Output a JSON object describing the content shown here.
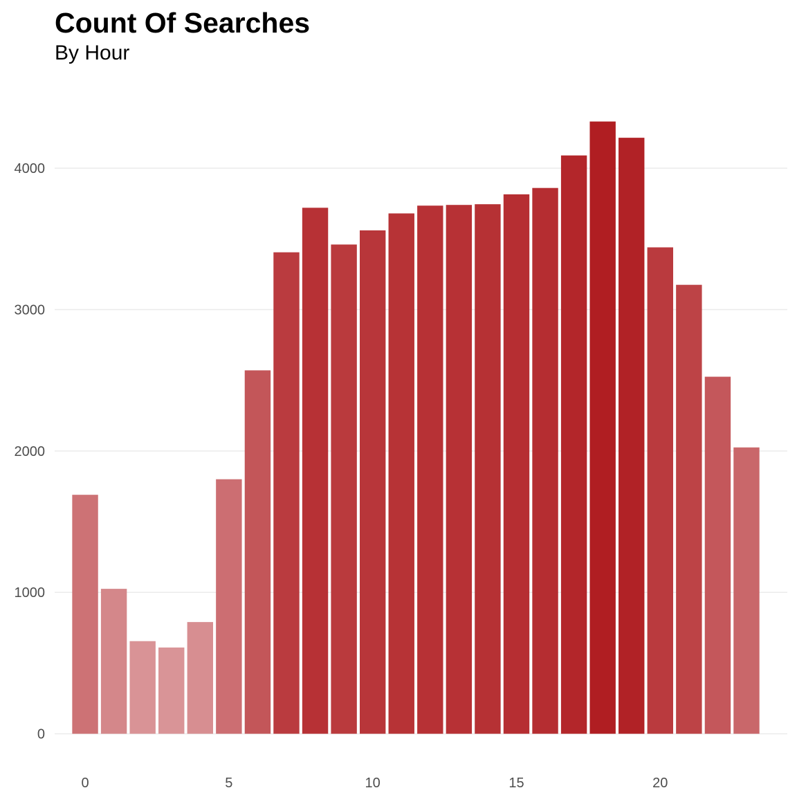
{
  "chart_data": {
    "type": "bar",
    "title": "Count Of Searches",
    "subtitle": "By Hour",
    "xlabel": "",
    "ylabel": "",
    "x": [
      0,
      1,
      2,
      3,
      4,
      5,
      6,
      7,
      8,
      9,
      10,
      11,
      12,
      13,
      14,
      15,
      16,
      17,
      18,
      19,
      20,
      21,
      22,
      23
    ],
    "values": [
      1690,
      1025,
      655,
      610,
      790,
      1800,
      2570,
      3405,
      3720,
      3460,
      3560,
      3680,
      3735,
      3740,
      3745,
      3815,
      3860,
      4090,
      4330,
      4215,
      3440,
      3175,
      2525,
      2025
    ],
    "xlim": [
      -1.06,
      24.42
    ],
    "ylim": [
      -95,
      4700
    ],
    "x_ticks": [
      0,
      5,
      10,
      15,
      20
    ],
    "x_tick_labels": [
      "0",
      "5",
      "10",
      "15",
      "20"
    ],
    "y_ticks": [
      0,
      1000,
      2000,
      3000,
      4000
    ],
    "y_tick_labels": [
      "0",
      "1000",
      "2000",
      "3000",
      "4000"
    ],
    "grid": true,
    "legend": "none",
    "fill_color_scale": {
      "low": "#d99497",
      "high": "#b01e22",
      "min_value": 610,
      "max_value": 4330
    },
    "grid_color": "#ebebeb"
  }
}
